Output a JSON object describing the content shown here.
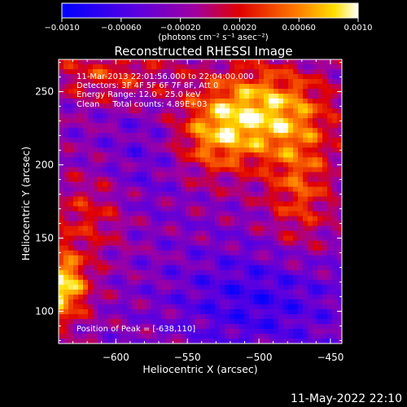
{
  "chart_data": {
    "type": "heatmap",
    "title": "Reconstructed RHESSI Image",
    "xlabel": "Heliocentric X (arcsec)",
    "ylabel": "Heliocentric Y (arcsec)",
    "xlim": [
      -640,
      -442
    ],
    "ylim": [
      78,
      272
    ],
    "xticks": [
      -600,
      -550,
      -500,
      -450
    ],
    "xtick_labels": [
      "−600",
      "−550",
      "−500",
      "−450"
    ],
    "yticks": [
      100,
      150,
      200,
      250
    ],
    "ytick_labels": [
      "100",
      "150",
      "200",
      "250"
    ],
    "colorbar": {
      "range": [
        -0.001,
        0.001
      ],
      "tick_values": [
        -0.001,
        -0.0006,
        -0.0002,
        0.0002,
        0.0006,
        0.001
      ],
      "tick_labels": [
        "−0.0010",
        "−0.00060",
        "−0.00020",
        "0.00020",
        "0.00060",
        "0.0010"
      ],
      "unit_label": "(photons cm⁻² s⁻¹ asec⁻²)"
    },
    "info_lines": [
      "11-Mar-2013 22:01:56.000 to 22:04:00.000",
      "Detectors: 3F 4F 5F 6F 7F 8F, Att 0",
      "Energy Range: 12.0 - 25.0 keV",
      "Clean     Total counts: 4.89E+03"
    ],
    "peak_label": "Position of Peak = [-638,110]",
    "peak_position": [
      -638,
      110
    ],
    "colors": {
      "low": "#0000ff",
      "mid": "#9a00c0",
      "high": "#ffffff",
      "background": "#000000"
    }
  },
  "footer": {
    "date": "11-May-2022 22:10"
  }
}
